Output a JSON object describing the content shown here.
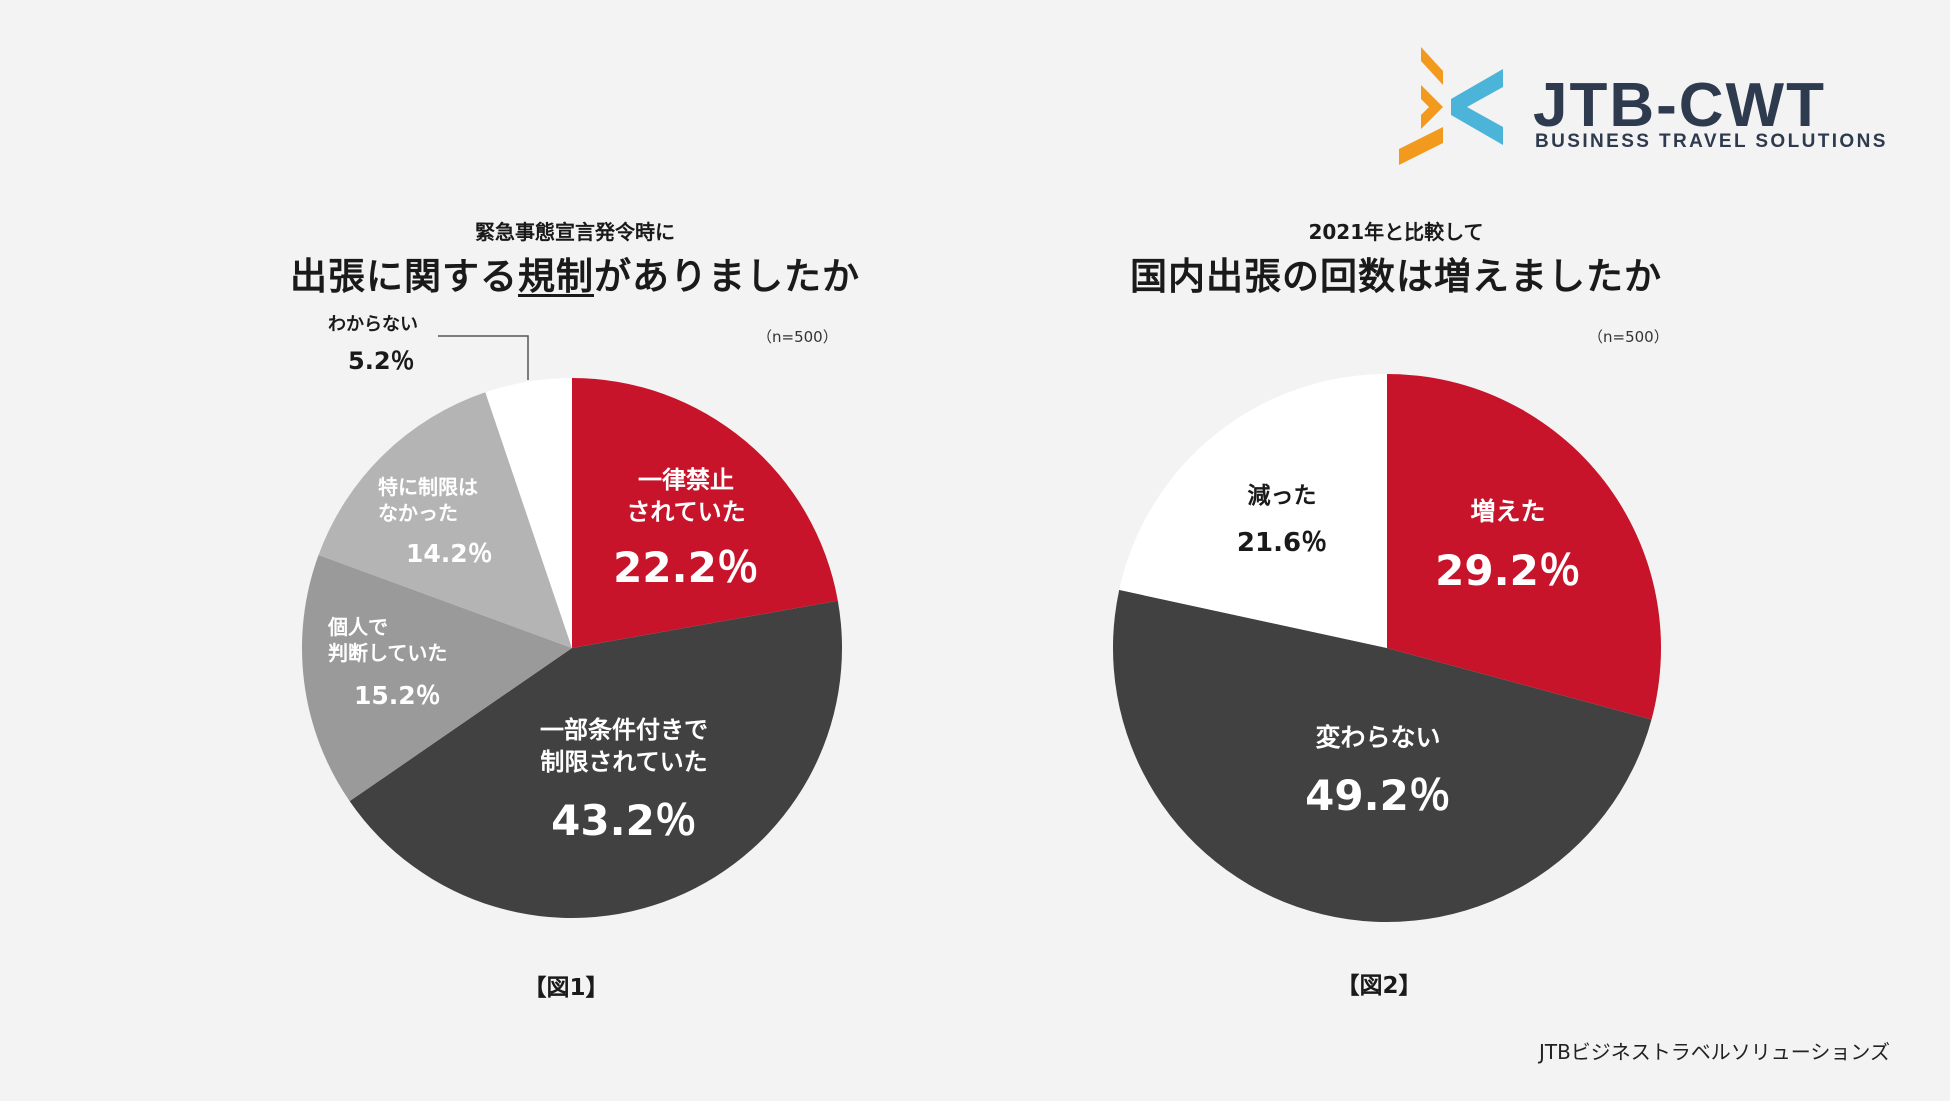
{
  "logo": {
    "name": "JTB-CWT",
    "tagline": "BUSINESS TRAVEL SOLUTIONS",
    "orange": "#f29a1d",
    "blue": "#4bb4d8"
  },
  "colors": {
    "red": "#c8142a",
    "dark": "#414141",
    "mid": "#9a9a9a",
    "light": "#b4b4b4",
    "white": "#ffffff"
  },
  "chart_data": [
    {
      "type": "pie",
      "subtitle": "緊急事態宣言発令時に",
      "title_pre": "出張に関する",
      "title_underlined": "規制",
      "title_post": "がありましたか",
      "sample": "（n=500）",
      "figure_label": "【図1】",
      "slices": [
        {
          "label_lines": [
            "一律禁止",
            "されていた"
          ],
          "value": 22.2,
          "pct_text": "22.2％",
          "color": "#c8142a"
        },
        {
          "label_lines": [
            "一部条件付きで",
            "制限されていた"
          ],
          "value": 43.2,
          "pct_text": "43.2％",
          "color": "#414141"
        },
        {
          "label_lines": [
            "個人で",
            "判断していた"
          ],
          "value": 15.2,
          "pct_text": "15.2％",
          "color": "#9a9a9a"
        },
        {
          "label_lines": [
            "特に制限は",
            "なかった"
          ],
          "value": 14.2,
          "pct_text": "14.2％",
          "color": "#b4b4b4"
        },
        {
          "label_lines": [
            "わからない"
          ],
          "value": 5.2,
          "pct_text": "5.2％",
          "color": "#ffffff"
        }
      ]
    },
    {
      "type": "pie",
      "subtitle": "2021年と比較して",
      "title": "国内出張の回数は増えましたか",
      "sample": "（n=500）",
      "figure_label": "【図2】",
      "slices": [
        {
          "label_lines": [
            "増えた"
          ],
          "value": 29.2,
          "pct_text": "29.2％",
          "color": "#c8142a"
        },
        {
          "label_lines": [
            "変わらない"
          ],
          "value": 49.2,
          "pct_text": "49.2％",
          "color": "#414141"
        },
        {
          "label_lines": [
            "減った"
          ],
          "value": 21.6,
          "pct_text": "21.6％",
          "color": "#ffffff"
        }
      ]
    }
  ],
  "footer": "JTBビジネストラベルソリューションズ"
}
